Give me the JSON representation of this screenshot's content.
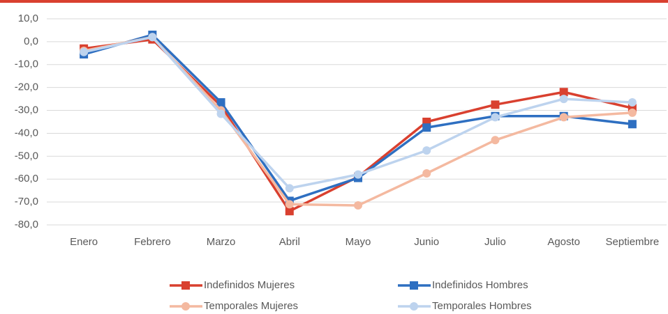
{
  "chart_data": {
    "type": "line",
    "categories": [
      "Enero",
      "Febrero",
      "Marzo",
      "Abril",
      "Mayo",
      "Junio",
      "Julio",
      "Agosto",
      "Septiembre"
    ],
    "series": [
      {
        "name": "Indefinidos Mujeres",
        "color": "#d9402f",
        "marker": "square",
        "values": [
          -3,
          1,
          -28,
          -74,
          -59,
          -35,
          -27.5,
          -22,
          -29
        ]
      },
      {
        "name": "Indefinidos Hombres",
        "color": "#2e6fc1",
        "marker": "square",
        "values": [
          -5.5,
          3,
          -26.5,
          -69.5,
          -59.5,
          -37.5,
          -32.5,
          -32.5,
          -36
        ]
      },
      {
        "name": "Temporales Mujeres",
        "color": "#f4b9a0",
        "marker": "circle",
        "values": [
          -4,
          2,
          -30,
          -71,
          -71.5,
          -57.5,
          -43,
          -33,
          -31
        ]
      },
      {
        "name": "Temporales Hombres",
        "color": "#bdd3ee",
        "marker": "circle",
        "values": [
          -4.5,
          2,
          -31.5,
          -64,
          -58,
          -47.5,
          -33,
          -25,
          -26.5
        ]
      }
    ],
    "ylim": [
      -80,
      10
    ],
    "yticks": [
      {
        "value": 10,
        "label": "10,0"
      },
      {
        "value": 0,
        "label": "0,0"
      },
      {
        "value": -10,
        "label": "-10,0"
      },
      {
        "value": -20,
        "label": "-20,0"
      },
      {
        "value": -30,
        "label": "-30,0"
      },
      {
        "value": -40,
        "label": "-40,0"
      },
      {
        "value": -50,
        "label": "-50,0"
      },
      {
        "value": -60,
        "label": "-60,0"
      },
      {
        "value": -70,
        "label": "-70,0"
      },
      {
        "value": -80,
        "label": "-80,0"
      }
    ],
    "grid": true,
    "legend": "bottom"
  }
}
